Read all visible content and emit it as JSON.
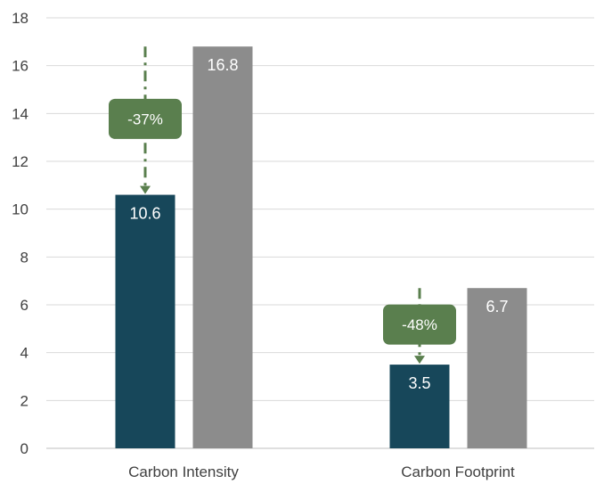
{
  "chart_data": {
    "type": "bar",
    "title": "",
    "xlabel": "",
    "ylabel": "",
    "ylim": [
      0,
      18
    ],
    "yticks": [
      0,
      2,
      4,
      6,
      8,
      10,
      12,
      14,
      16,
      18
    ],
    "grid": true,
    "categories": [
      "Carbon Intensity",
      "Carbon Footprint"
    ],
    "series": [
      {
        "values": [
          10.6,
          3.5
        ],
        "color": "#17475a"
      },
      {
        "values": [
          16.8,
          6.7
        ],
        "color": "#8c8c8c"
      }
    ],
    "data_labels": [
      "10.6",
      "3.5",
      "16.8",
      "6.7"
    ],
    "annotations": [
      {
        "category": "Carbon Intensity",
        "text": "-37%",
        "from": 16.8,
        "to": 10.6,
        "color": "#5a7f4e"
      },
      {
        "category": "Carbon Footprint",
        "text": "-48%",
        "from": 6.7,
        "to": 3.5,
        "color": "#5a7f4e"
      }
    ]
  }
}
